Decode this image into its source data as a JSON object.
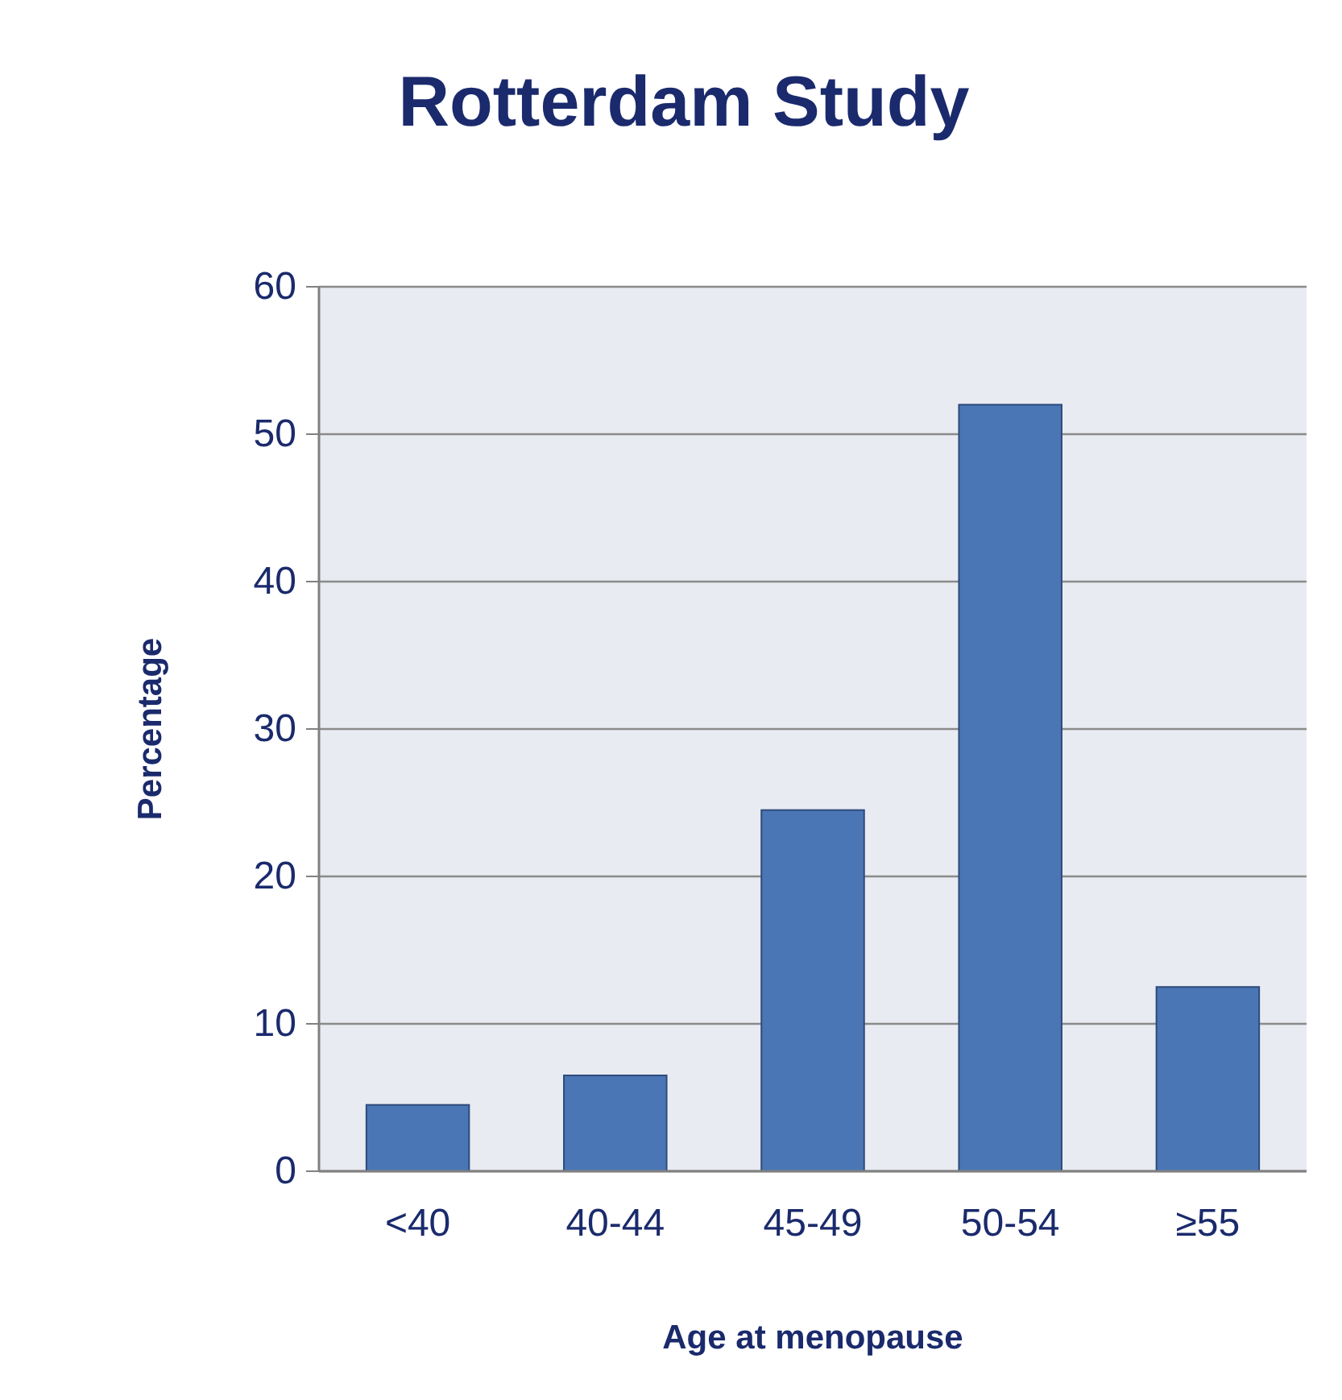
{
  "chart_data": {
    "type": "bar",
    "title": "Rotterdam Study",
    "xlabel": "Age at menopause",
    "ylabel": "Percentage",
    "categories": [
      "<40",
      "40-44",
      "45-49",
      "50-54",
      "≥55"
    ],
    "values": [
      4.5,
      6.5,
      24.5,
      52,
      12.5
    ],
    "color": "#4a76b5",
    "ylim": [
      0,
      60
    ],
    "yticks": [
      0,
      10,
      20,
      30,
      40,
      50,
      60
    ],
    "grid": "y"
  }
}
